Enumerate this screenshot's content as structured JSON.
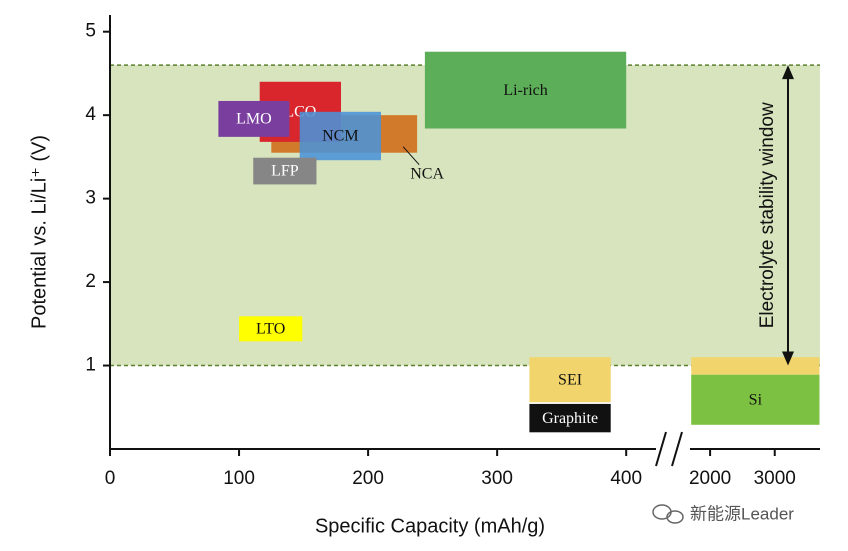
{
  "chart_data": {
    "type": "range",
    "xlabel": "Specific Capacity (mAh/g)",
    "ylabel": "Potential vs. Li/Li⁺ (V)",
    "xlim": [
      0,
      420
    ],
    "xticks": [
      0,
      100,
      200,
      300,
      400
    ],
    "x2lim": [
      1550,
      3700
    ],
    "x2ticks": [
      2000,
      3000
    ],
    "ylim": [
      0,
      5.2
    ],
    "yticks": [
      1,
      2,
      3,
      4,
      5
    ],
    "window": {
      "label": "Electrolyte stability window",
      "values": [
        1,
        4.6
      ],
      "color": "#d7e4bd",
      "line_color": "#5b7f2b"
    },
    "series": [
      {
        "name": "NCA",
        "color": "#d27a2c",
        "text_color": "#111111",
        "x": [
          125,
          238
        ],
        "values": [
          3.55,
          4.0
        ],
        "label_offset": true
      },
      {
        "name": "LCO",
        "color": "#d8262c",
        "text_color": "#ffffff",
        "x": [
          116,
          179
        ],
        "values": [
          3.68,
          4.4
        ]
      },
      {
        "name": "LMO",
        "color": "#7a3e9e",
        "text_color": "#ffffff",
        "x": [
          84,
          139
        ],
        "values": [
          3.74,
          4.17
        ]
      },
      {
        "name": "NCM",
        "color": "#4b93d8",
        "text_color": "#111111",
        "x": [
          147,
          210
        ],
        "values": [
          3.46,
          4.04
        ]
      },
      {
        "name": "LFP",
        "color": "#868686",
        "text_color": "#ffffff",
        "x": [
          111,
          160
        ],
        "values": [
          3.17,
          3.49
        ]
      },
      {
        "name": "Li-rich",
        "color": "#5cae58",
        "text_color": "#111111",
        "x": [
          244,
          400
        ],
        "values": [
          3.84,
          4.76
        ]
      },
      {
        "name": "LTO",
        "color": "#ffff00",
        "text_color": "#111111",
        "x": [
          100,
          149
        ],
        "values": [
          1.29,
          1.59
        ]
      },
      {
        "name": "SEI",
        "color": "#f1d46b",
        "text_color": "#111111",
        "x": [
          325,
          388
        ],
        "values": [
          0.56,
          1.1
        ]
      },
      {
        "name": "Graphite",
        "color": "#111111",
        "text_color": "#ffffff",
        "x": [
          325,
          388
        ],
        "values": [
          0.2,
          0.54
        ]
      },
      {
        "color": "#f1d46b",
        "x": [
          1708,
          3692
        ],
        "values": [
          0.89,
          1.1
        ],
        "axis": "x2"
      },
      {
        "name": "Si",
        "color": "#7dc142",
        "text_color": "#111111",
        "x": [
          1708,
          3692
        ],
        "values": [
          0.29,
          0.89
        ],
        "axis": "x2"
      }
    ],
    "watermark": "新能源Leader"
  }
}
